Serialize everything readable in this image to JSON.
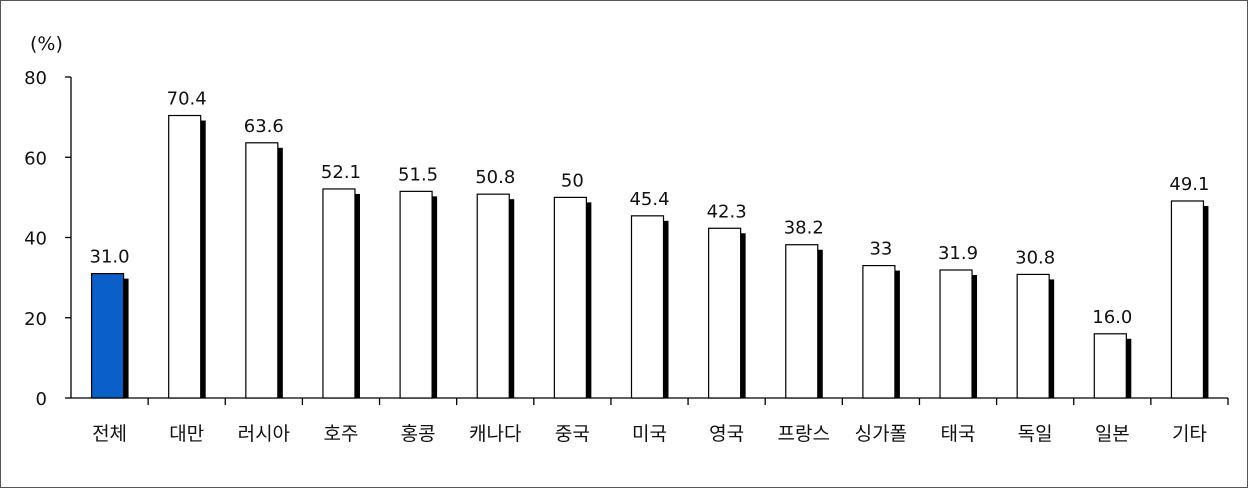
{
  "chart_data": {
    "type": "bar",
    "ylabel": "(%)",
    "ylim": [
      0,
      80
    ],
    "yticks": [
      0,
      20,
      40,
      60,
      80
    ],
    "categories": [
      "전체",
      "대만",
      "러시아",
      "호주",
      "홍콩",
      "캐나다",
      "중국",
      "미국",
      "영국",
      "프랑스",
      "싱가폴",
      "태국",
      "독일",
      "일본",
      "기타"
    ],
    "values": [
      31.0,
      70.4,
      63.6,
      52.1,
      51.5,
      50.8,
      50,
      45.4,
      42.3,
      38.2,
      33,
      31.9,
      30.8,
      16.0,
      49.1
    ],
    "value_labels": [
      "31.0",
      "70.4",
      "63.6",
      "52.1",
      "51.5",
      "50.8",
      "50",
      "45.4",
      "42.3",
      "38.2",
      "33",
      "31.9",
      "30.8",
      "16.0",
      "49.1"
    ],
    "highlight_index": 0,
    "colors": {
      "highlight_fill": "#0a5fc8",
      "bar_fill": "#ffffff",
      "bar_stroke": "#000000",
      "shadow": "#000000",
      "axis": "#000000"
    },
    "grid": false,
    "legend": "none"
  }
}
